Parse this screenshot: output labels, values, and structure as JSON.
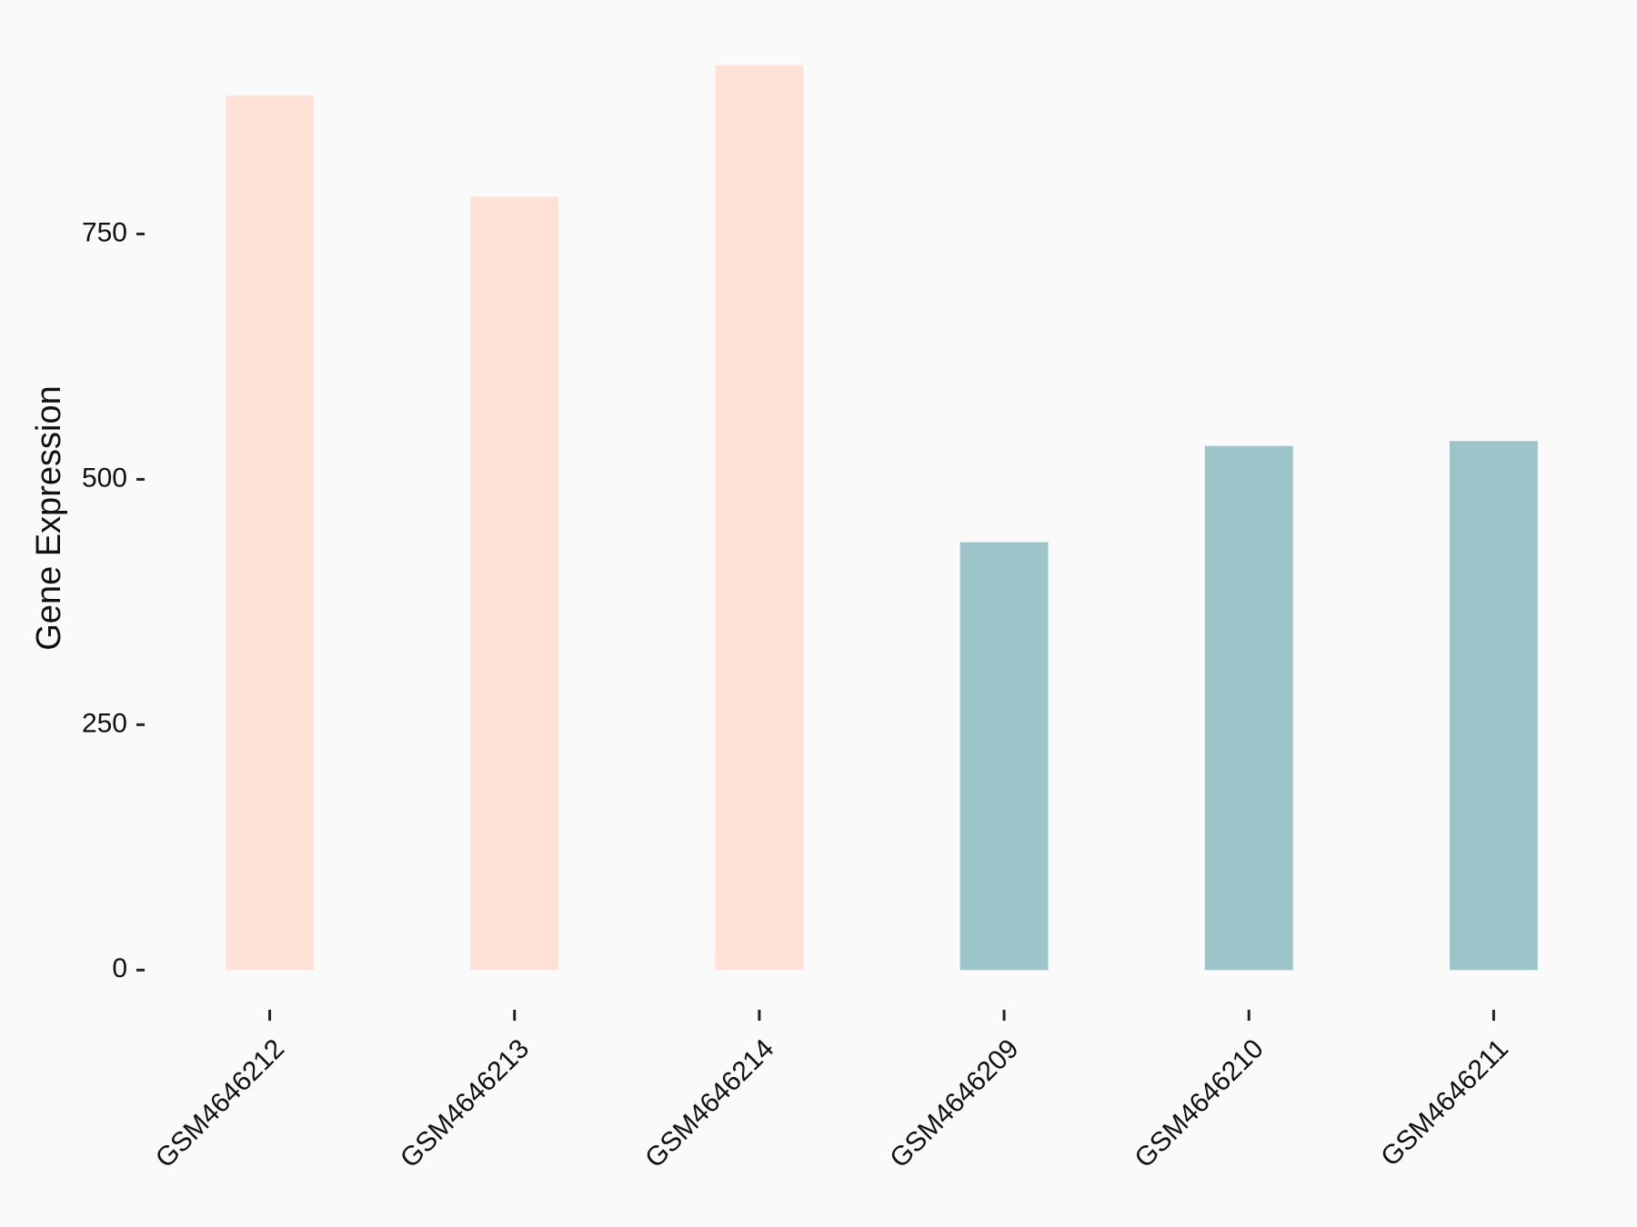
{
  "chart_data": {
    "type": "bar",
    "y_label": "Gene Expression",
    "categories": [
      "GSM4646212",
      "GSM4646213",
      "GSM4646214",
      "GSM4646209",
      "GSM4646210",
      "GSM4646211"
    ],
    "values": [
      891,
      788,
      922,
      436,
      534,
      539
    ],
    "colors": [
      "#ffe1d7",
      "#ffe1d7",
      "#ffe1d7",
      "#9dc4c8",
      "#9dc4c8",
      "#9dc4c8"
    ],
    "ylim": [
      -46,
      968
    ],
    "yticks": [
      0,
      250,
      500,
      750
    ],
    "grid": false
  }
}
